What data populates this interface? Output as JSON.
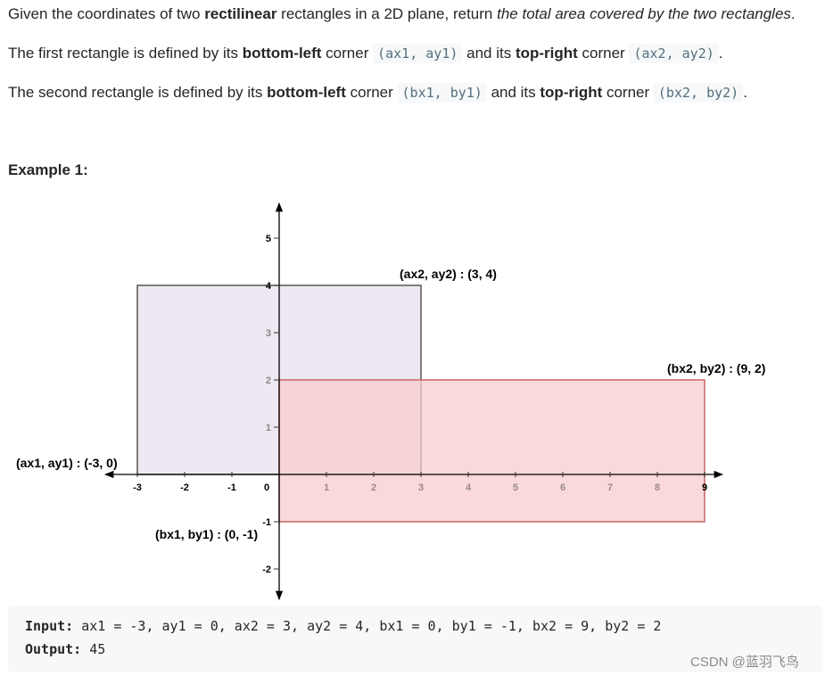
{
  "problem": {
    "p1": {
      "pre": "Given the coordinates of two ",
      "bold": "rectilinear",
      "mid": " rectangles in a 2D plane, return ",
      "italic": "the total area covered by the two rectangles",
      "end": "."
    },
    "p2": {
      "pre": "The first rectangle is defined by its ",
      "bold1": "bottom-left",
      "mid1": " corner ",
      "code1": "(ax1, ay1)",
      "mid2": " and its ",
      "bold2": "top-right",
      "mid3": " corner ",
      "code2": "(ax2, ay2)",
      "end": "."
    },
    "p3": {
      "pre": "The second rectangle is defined by its ",
      "bold1": "bottom-left",
      "mid1": " corner ",
      "code1": "(bx1, by1)",
      "mid2": " and its ",
      "bold2": "top-right",
      "mid3": " corner ",
      "code2": "(bx2, by2)",
      "end": "."
    }
  },
  "example": {
    "heading": "Example 1:",
    "input_label": "Input:",
    "input_value": " ax1 = -3, ay1 = 0, ax2 = 3, ay2 = 4, bx1 = 0, by1 = -1, bx2 = 9, by2 = 2",
    "output_label": "Output:",
    "output_value": " 45"
  },
  "figure": {
    "x_ticks": [
      -3,
      -2,
      -1,
      0,
      1,
      2,
      3,
      4,
      5,
      6,
      7,
      8,
      9
    ],
    "y_ticks": [
      -2,
      -1,
      1,
      2,
      3,
      4,
      5
    ],
    "rect_a": {
      "x1": -3,
      "y1": 0,
      "x2": 3,
      "y2": 4,
      "fill": "#e8e0ee",
      "stroke": "#555555"
    },
    "rect_b": {
      "x1": 0,
      "y1": -1,
      "x2": 9,
      "y2": 2,
      "fill": "#f7cccc",
      "stroke": "#c86464"
    },
    "labels": {
      "a_top_right": "(ax2, ay2) : (3, 4)",
      "a_bottom_left": "(ax1, ay1) : (-3, 0)",
      "b_top_right": "(bx2, by2) : (9, 2)",
      "b_bottom_left": "(bx1, by1) : (0, -1)"
    }
  },
  "watermark": "CSDN @蓝羽飞鸟"
}
